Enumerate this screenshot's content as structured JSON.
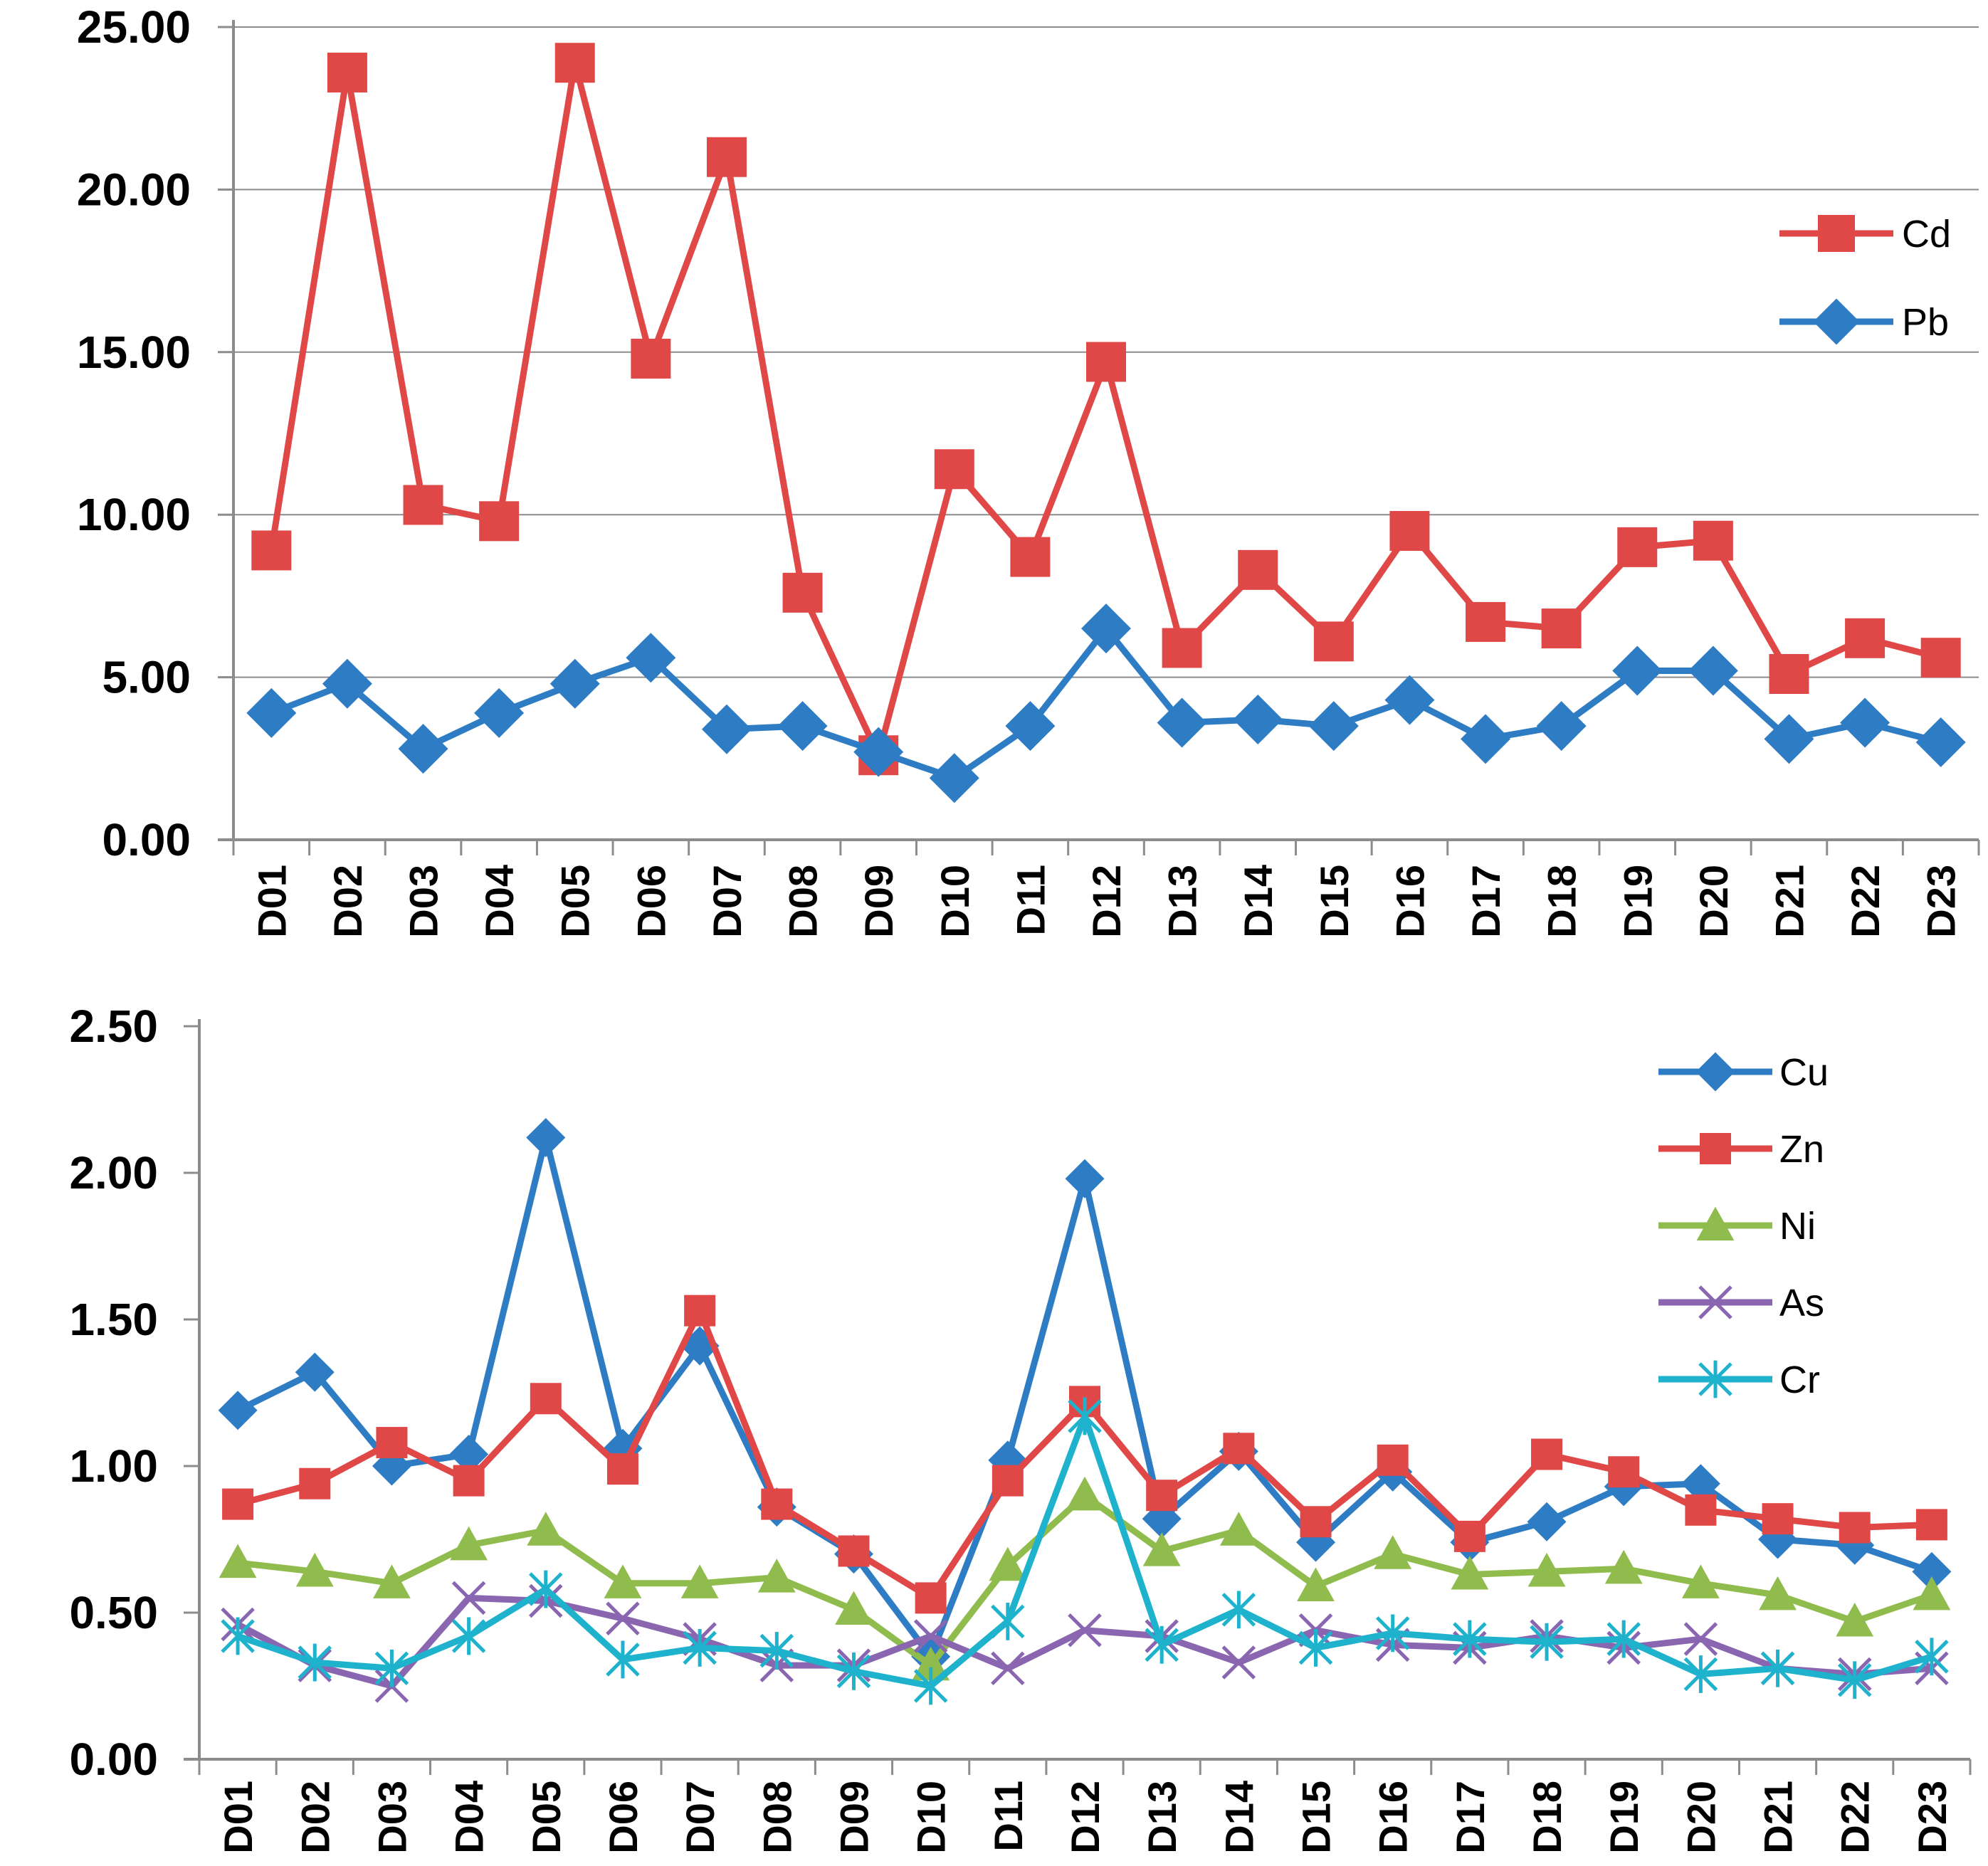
{
  "chart_data": [
    {
      "type": "line",
      "title": "",
      "xlabel": "",
      "ylabel": "",
      "ylim": [
        0,
        25
      ],
      "yticks": [
        "0.00",
        "5.00",
        "10.00",
        "15.00",
        "20.00",
        "25.00"
      ],
      "categories": [
        "D01",
        "D02",
        "D03",
        "D04",
        "D05",
        "D06",
        "D07",
        "D08",
        "D09",
        "D10",
        "D11",
        "D12",
        "D13",
        "D14",
        "D15",
        "D16",
        "D17",
        "D18",
        "D19",
        "D20",
        "D21",
        "D22",
        "D23"
      ],
      "grid": true,
      "legend": "right",
      "series": [
        {
          "name": "Cd",
          "color": "#e04848",
          "marker": "square",
          "values": [
            8.9,
            23.6,
            10.3,
            9.8,
            23.9,
            14.8,
            21.0,
            7.6,
            2.6,
            11.4,
            8.7,
            14.7,
            5.9,
            8.3,
            6.1,
            9.5,
            6.7,
            6.5,
            9.0,
            9.2,
            5.1,
            6.2,
            5.6
          ]
        },
        {
          "name": "Pb",
          "color": "#2e7cc4",
          "marker": "diamond",
          "values": [
            3.9,
            4.8,
            2.8,
            3.9,
            4.8,
            5.6,
            3.4,
            3.5,
            2.7,
            1.9,
            3.5,
            6.5,
            3.6,
            3.7,
            3.5,
            4.3,
            3.1,
            3.5,
            5.2,
            5.2,
            3.1,
            3.6,
            3.0
          ]
        }
      ]
    },
    {
      "type": "line",
      "title": "",
      "xlabel": "",
      "ylabel": "",
      "ylim": [
        0,
        2.5
      ],
      "yticks": [
        "0.00",
        "0.50",
        "1.00",
        "1.50",
        "2.00",
        "2.50"
      ],
      "categories": [
        "D01",
        "D02",
        "D03",
        "D04",
        "D05",
        "D06",
        "D07",
        "D08",
        "D09",
        "D10",
        "D11",
        "D12",
        "D13",
        "D14",
        "D15",
        "D16",
        "D17",
        "D18",
        "D19",
        "D20",
        "D21",
        "D22",
        "D23"
      ],
      "grid": false,
      "legend": "top-right",
      "series": [
        {
          "name": "Cu",
          "color": "#2e7cc4",
          "marker": "diamond",
          "values": [
            1.19,
            1.32,
            1.0,
            1.04,
            2.12,
            1.06,
            1.41,
            0.86,
            0.7,
            0.35,
            1.02,
            1.98,
            0.82,
            1.05,
            0.74,
            0.98,
            0.74,
            0.81,
            0.93,
            0.94,
            0.75,
            0.73,
            0.64
          ]
        },
        {
          "name": "Zn",
          "color": "#e04848",
          "marker": "square",
          "values": [
            0.87,
            0.94,
            1.08,
            0.95,
            1.23,
            0.99,
            1.53,
            0.87,
            0.71,
            0.55,
            0.95,
            1.22,
            0.9,
            1.06,
            0.81,
            1.02,
            0.76,
            1.04,
            0.98,
            0.85,
            0.82,
            0.79,
            0.8
          ]
        },
        {
          "name": "Ni",
          "color": "#8fbc4c",
          "marker": "triangle",
          "values": [
            0.67,
            0.64,
            0.6,
            0.73,
            0.78,
            0.6,
            0.6,
            0.62,
            0.51,
            0.32,
            0.66,
            0.9,
            0.71,
            0.78,
            0.59,
            0.7,
            0.63,
            0.64,
            0.65,
            0.6,
            0.56,
            0.47,
            0.56
          ]
        },
        {
          "name": "As",
          "color": "#8a65b0",
          "marker": "x",
          "values": [
            0.46,
            0.32,
            0.25,
            0.55,
            0.54,
            0.48,
            0.41,
            0.32,
            0.32,
            0.42,
            0.31,
            0.44,
            0.42,
            0.33,
            0.44,
            0.39,
            0.38,
            0.42,
            0.38,
            0.41,
            0.31,
            0.29,
            0.31
          ]
        },
        {
          "name": "Cr",
          "color": "#1fb2cc",
          "marker": "star",
          "values": [
            0.42,
            0.33,
            0.31,
            0.42,
            0.58,
            0.34,
            0.38,
            0.37,
            0.3,
            0.25,
            0.47,
            1.17,
            0.39,
            0.51,
            0.38,
            0.43,
            0.41,
            0.4,
            0.41,
            0.29,
            0.31,
            0.27,
            0.35
          ]
        }
      ]
    }
  ]
}
